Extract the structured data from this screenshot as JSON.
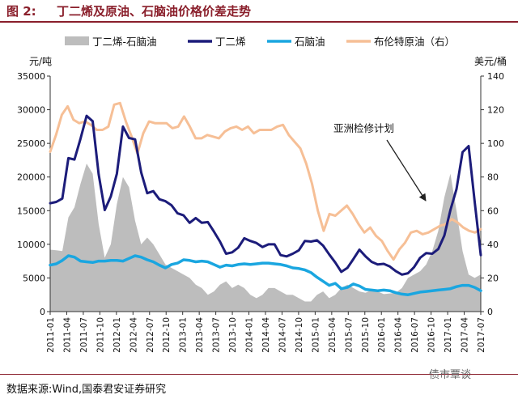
{
  "figure": {
    "label": "图 2:",
    "title": "丁二烯及原油、石脑油价格价差走势",
    "source": "数据来源:Wind,国泰君安证券研究",
    "watermark": "债市覃谈"
  },
  "chart_data": {
    "type": "line",
    "y_left_label": "元/吨",
    "y_right_label": "美元/桶",
    "y_left_ticks": [
      "0",
      "5000",
      "10000",
      "15000",
      "20000",
      "25000",
      "30000",
      "35000"
    ],
    "y_right_ticks": [
      "0",
      "20",
      "40",
      "60",
      "80",
      "100",
      "120",
      "140"
    ],
    "ylim_left": [
      0,
      35000
    ],
    "ylim_right": [
      0,
      140
    ],
    "x_ticks": [
      "2011-01",
      "2011-04",
      "2011-07",
      "2011-10",
      "2012-01",
      "2012-04",
      "2012-07",
      "2012-10",
      "2013-01",
      "2013-04",
      "2013-07",
      "2013-10",
      "2014-01",
      "2014-04",
      "2014-07",
      "2014-10",
      "2015-01",
      "2015-04",
      "2015-07",
      "2015-10",
      "2016-01",
      "2016-04",
      "2016-07",
      "2016-10",
      "2017-01",
      "2017-04",
      "2017-07"
    ],
    "legend": [
      "丁二烯-石脑油",
      "丁二烯",
      "石脑油",
      "布伦特原油（右）"
    ],
    "annotation": "亚洲检修计划",
    "colors": {
      "spread": "#bdbdbd",
      "butadiene": "#1c1c7a",
      "naphtha": "#1aa6e0",
      "brent": "#f6bf96"
    },
    "series": [
      {
        "name": "丁二烯-石脑油",
        "axis": "left",
        "type": "area",
        "values": [
          9200,
          9100,
          9000,
          14000,
          15500,
          19000,
          22000,
          20500,
          13000,
          8000,
          10000,
          16000,
          20000,
          18500,
          13500,
          10000,
          11000,
          10000,
          8500,
          7000,
          6500,
          6000,
          5500,
          5000,
          4000,
          3500,
          2500,
          3000,
          4000,
          4500,
          3500,
          4000,
          3500,
          2500,
          2000,
          2500,
          3500,
          3500,
          3000,
          2500,
          2500,
          2000,
          1500,
          1500,
          2500,
          3000,
          2000,
          2500,
          3500,
          4000,
          3500,
          3000,
          2800,
          3200,
          3000,
          2600,
          2700,
          2800,
          3500,
          5000,
          5500,
          6000,
          7000,
          9000,
          12000,
          17000,
          20500,
          15000,
          9000,
          5500,
          5000,
          5500
        ]
      },
      {
        "name": "丁二烯",
        "axis": "left",
        "type": "line",
        "values": [
          16100,
          16300,
          16800,
          22800,
          22600,
          25700,
          29100,
          28300,
          20400,
          15100,
          17100,
          20500,
          27500,
          25800,
          25600,
          20700,
          17600,
          17900,
          16700,
          16400,
          15800,
          14600,
          14300,
          13200,
          13900,
          13200,
          13300,
          11900,
          10400,
          8600,
          8800,
          9500,
          10900,
          10500,
          10200,
          9600,
          10000,
          10000,
          8400,
          8200,
          8600,
          9100,
          10500,
          10400,
          10600,
          9800,
          8500,
          7300,
          5900,
          6500,
          7800,
          9200,
          8200,
          7400,
          7000,
          7100,
          6700,
          6000,
          5500,
          5700,
          6600,
          8000,
          8700,
          8600,
          9300,
          11300,
          15100,
          18200,
          23700,
          24600,
          16300,
          8400
        ]
      },
      {
        "name": "石脑油",
        "axis": "left",
        "type": "line",
        "values": [
          6900,
          7100,
          7600,
          8300,
          8100,
          7500,
          7400,
          7300,
          7500,
          7500,
          7600,
          7600,
          7500,
          7900,
          8300,
          8100,
          7700,
          7400,
          6900,
          6500,
          7000,
          7200,
          7700,
          7600,
          7400,
          7500,
          7400,
          7000,
          6600,
          6900,
          6800,
          7000,
          7100,
          7000,
          7100,
          7200,
          7200,
          7100,
          7000,
          6800,
          6500,
          6400,
          6200,
          5800,
          5100,
          4500,
          3900,
          4200,
          3400,
          3600,
          4100,
          3800,
          3300,
          3200,
          3100,
          3200,
          3100,
          2800,
          2600,
          2500,
          2700,
          2900,
          3000,
          3100,
          3200,
          3300,
          3400,
          3700,
          3900,
          3900,
          3600,
          3100
        ]
      },
      {
        "name": "布伦特原油（右）",
        "axis": "right",
        "type": "line",
        "values": [
          95,
          105,
          117,
          122,
          114,
          112,
          113,
          111,
          108,
          108,
          110,
          123,
          124,
          113,
          104,
          94,
          106,
          113,
          112,
          112,
          112,
          109,
          110,
          116,
          110,
          103,
          103,
          105,
          104,
          103,
          107,
          109,
          110,
          108,
          110,
          106,
          108,
          108,
          108,
          110,
          111,
          105,
          101,
          97,
          88,
          76,
          60,
          48,
          58,
          57,
          60,
          63,
          58,
          52,
          47,
          50,
          45,
          42,
          36,
          31,
          37,
          41,
          47,
          48,
          46,
          47,
          49,
          51,
          52,
          55,
          53,
          50,
          48,
          47,
          49
        ]
      }
    ]
  }
}
